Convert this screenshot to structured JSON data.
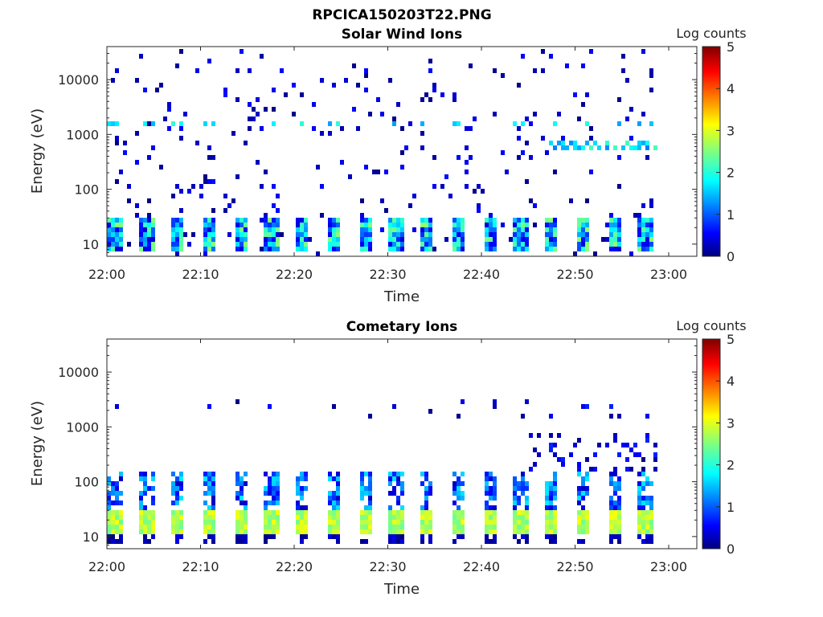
{
  "figure_title": "RPCICA150203T22.PNG",
  "colorbar": {
    "label": "Log counts",
    "ticks": [
      "0",
      "1",
      "2",
      "3",
      "4",
      "5"
    ],
    "range": [
      0,
      5
    ],
    "colormap": "jet"
  },
  "chart_data": [
    {
      "type": "heatmap",
      "title": "Solar Wind Ions",
      "xlabel": "Time",
      "ylabel": "Energy (eV)",
      "x_ticks": [
        "22:00",
        "22:10",
        "22:20",
        "22:30",
        "22:40",
        "22:50",
        "23:00"
      ],
      "xlim_minutes": [
        0,
        63
      ],
      "y_ticks": [
        "10",
        "100",
        "1000",
        "10000"
      ],
      "y_scale": "log",
      "ylim": [
        6,
        40000
      ],
      "data_end_minute": 59,
      "colorbar_range": [
        0,
        5
      ],
      "description_of_bands": [
        {
          "energy_range_eV": [
            8,
            25
          ],
          "log_counts": [
            0.3,
            2.5
          ],
          "pattern": "periodic sweeps every ~3.3 min"
        },
        {
          "energy_range_eV": [
            1500,
            1800
          ],
          "log_counts": [
            1.5,
            2.2
          ],
          "pattern": "intermittent spots"
        },
        {
          "energy_range_eV": [
            500,
            700
          ],
          "log_counts": [
            1.2,
            2.3
          ],
          "time_range_min": [
            47,
            58
          ],
          "pattern": "enhanced band"
        }
      ]
    },
    {
      "type": "heatmap",
      "title": "Cometary Ions",
      "xlabel": "Time",
      "ylabel": "Energy (eV)",
      "x_ticks": [
        "22:00",
        "22:10",
        "22:20",
        "22:30",
        "22:40",
        "22:50",
        "23:00"
      ],
      "xlim_minutes": [
        0,
        63
      ],
      "y_ticks": [
        "10",
        "100",
        "1000",
        "10000"
      ],
      "y_scale": "log",
      "ylim": [
        6,
        40000
      ],
      "data_end_minute": 59,
      "colorbar_range": [
        0,
        5
      ],
      "description_of_bands": [
        {
          "energy_range_eV": [
            12,
            25
          ],
          "log_counts": [
            2.5,
            3.1
          ],
          "pattern": "periodic sweeps every ~3.3 min"
        },
        {
          "energy_range_eV": [
            30,
            150
          ],
          "log_counts": [
            0.3,
            1.8
          ],
          "pattern": "periodic sweeps"
        },
        {
          "energy_range_eV": [
            1500,
            3000
          ],
          "log_counts": [
            0.2,
            0.8
          ],
          "pattern": "sparse spots"
        }
      ]
    }
  ]
}
